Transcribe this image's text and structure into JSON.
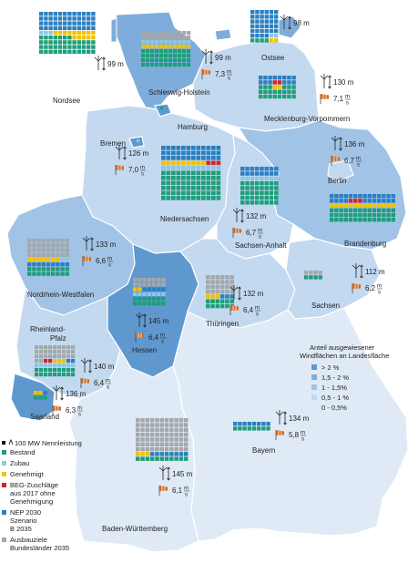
{
  "legend_left": {
    "unit_label": "100 MW Nennleistung",
    "items": [
      {
        "label": "Bestand",
        "color": "#1e9e7a"
      },
      {
        "label": "Zubau",
        "color": "#8cc7e4"
      },
      {
        "label": "Genehmigt",
        "color": "#f2c200"
      },
      {
        "label": "BEG-Zuschläge aus 2017 ohne Genehmigung",
        "lines": [
          "BEG-Zuschläge",
          "aus 2017 ohne",
          "Genehmigung"
        ],
        "color": "#d8222a"
      },
      {
        "label": "NEP 2030 Szenario B 2035",
        "lines": [
          "NEP 2030",
          "Szenario",
          "B 2035"
        ],
        "color": "#2a7fc0"
      },
      {
        "label": "Ausbauziele Bundesländer 2035",
        "lines": [
          "Ausbauziele",
          "Bundesländer 2035"
        ],
        "color": "#a4a8ab"
      }
    ]
  },
  "legend_right": {
    "title_lines": [
      "Anteil ausgewiesener",
      "Windflächen an Landesfläche"
    ],
    "classes": [
      {
        "label": "> 2 %",
        "color": "#5f98cf"
      },
      {
        "label": "1,5 - 2 %",
        "color": "#7eaddb"
      },
      {
        "label": "1 - 1,5%",
        "color": "#a0c3e6"
      },
      {
        "label": "0,5 - 1 %",
        "color": "#c3d9ef"
      },
      {
        "label": "0 - 0,5%",
        "color": "#dfeaf6"
      }
    ]
  },
  "units": {
    "speed_num": "m",
    "speed_den": "s"
  },
  "regions": [
    {
      "name": "Nordsee",
      "height": "99 m"
    },
    {
      "name": "Ostsee",
      "height": "98 m"
    },
    {
      "name": "Schleswig-Holstein",
      "height": "99 m",
      "speed": "7,3"
    },
    {
      "name": "Mecklenburg-Vorpommern",
      "height": "130 m",
      "speed": "7,1"
    },
    {
      "name": "Hamburg"
    },
    {
      "name": "Bremen",
      "height": "126 m",
      "speed": "7,0"
    },
    {
      "name": "Niedersachsen"
    },
    {
      "name": "Berlin"
    },
    {
      "name": "Brandenburg",
      "height": "136 m",
      "speed": "6,7"
    },
    {
      "name": "Sachsen-Anhalt",
      "height": "132 m",
      "speed": "6,7"
    },
    {
      "name": "Nordrhein-Westfalen",
      "height": "133 m",
      "speed": "6,6"
    },
    {
      "name": "Sachsen",
      "height": "112 m",
      "speed": "6,2"
    },
    {
      "name": "Thüringen",
      "height": "132 m",
      "speed": "6,4"
    },
    {
      "name": "Hessen",
      "height": "145 m",
      "speed": "6,4"
    },
    {
      "name": "Rheinland-Pfalz",
      "lines": [
        "Rheinland-",
        "Pfalz"
      ],
      "height": "140 m",
      "speed": "6,4"
    },
    {
      "name": "Saarland",
      "height": "136 m",
      "speed": "6,3"
    },
    {
      "name": "Bayern",
      "height": "134 m",
      "speed": "5,8"
    },
    {
      "name": "Baden-Württemberg",
      "height": "145 m",
      "speed": "6,1"
    }
  ]
}
